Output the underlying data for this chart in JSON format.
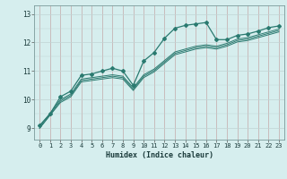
{
  "xlabel": "Humidex (Indice chaleur)",
  "xlim": [
    -0.5,
    23.5
  ],
  "ylim": [
    8.6,
    13.3
  ],
  "yticks": [
    9,
    10,
    11,
    12,
    13
  ],
  "ytick_labels": [
    "9",
    "10",
    "11",
    "12",
    "13"
  ],
  "xticks": [
    0,
    1,
    2,
    3,
    4,
    5,
    6,
    7,
    8,
    9,
    10,
    11,
    12,
    13,
    14,
    15,
    16,
    17,
    18,
    19,
    20,
    21,
    22,
    23
  ],
  "bg_color": "#d6eeee",
  "vgrid_color": "#c4a8a8",
  "hgrid_color": "#c0d4d4",
  "line_color": "#2a7a70",
  "lines": [
    {
      "x": [
        0,
        1,
        2,
        3,
        4,
        5,
        6,
        7,
        8,
        9,
        10,
        11,
        12,
        13,
        14,
        15,
        16,
        17,
        18,
        19,
        20,
        21,
        22,
        23
      ],
      "y": [
        9.1,
        9.5,
        10.1,
        10.3,
        10.85,
        10.9,
        11.0,
        11.1,
        11.0,
        10.5,
        11.35,
        11.65,
        12.15,
        12.5,
        12.6,
        12.65,
        12.7,
        12.1,
        12.1,
        12.25,
        12.3,
        12.4,
        12.52,
        12.58
      ],
      "marker": true
    },
    {
      "x": [
        0,
        2,
        3,
        4,
        5,
        6,
        7,
        8,
        9,
        10,
        11,
        12,
        13,
        14,
        15,
        16,
        17,
        18,
        19,
        20,
        21,
        22,
        23
      ],
      "y": [
        9.05,
        10.0,
        10.2,
        10.72,
        10.77,
        10.82,
        10.87,
        10.82,
        10.42,
        10.87,
        11.07,
        11.37,
        11.67,
        11.77,
        11.87,
        11.92,
        11.87,
        11.97,
        12.12,
        12.17,
        12.27,
        12.37,
        12.47
      ],
      "marker": false
    },
    {
      "x": [
        0,
        2,
        3,
        4,
        5,
        6,
        7,
        8,
        9,
        10,
        11,
        12,
        13,
        14,
        15,
        16,
        17,
        18,
        19,
        20,
        21,
        22,
        23
      ],
      "y": [
        9.0,
        9.95,
        10.15,
        10.67,
        10.72,
        10.77,
        10.82,
        10.77,
        10.37,
        10.82,
        11.02,
        11.32,
        11.62,
        11.72,
        11.82,
        11.87,
        11.82,
        11.92,
        12.07,
        12.12,
        12.22,
        12.32,
        12.42
      ],
      "marker": false
    },
    {
      "x": [
        0,
        2,
        3,
        4,
        5,
        6,
        7,
        8,
        9,
        10,
        11,
        12,
        13,
        14,
        15,
        16,
        17,
        18,
        19,
        20,
        21,
        22,
        23
      ],
      "y": [
        9.0,
        9.9,
        10.1,
        10.62,
        10.67,
        10.72,
        10.77,
        10.72,
        10.32,
        10.77,
        10.97,
        11.27,
        11.57,
        11.67,
        11.77,
        11.82,
        11.77,
        11.87,
        12.02,
        12.07,
        12.17,
        12.27,
        12.37
      ],
      "marker": false
    }
  ]
}
